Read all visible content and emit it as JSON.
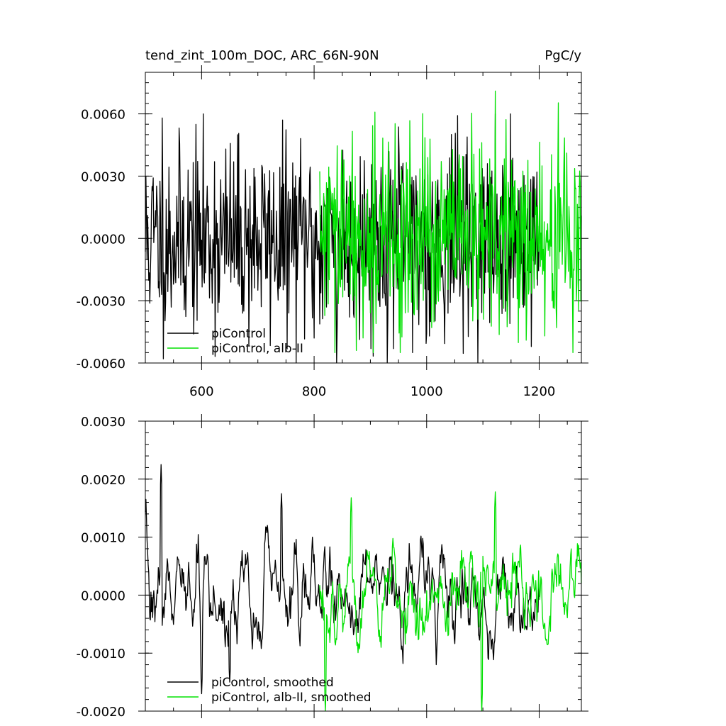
{
  "header": {
    "title": "tend_zint_100m_DOC, ARC_66N-90N",
    "units": "PgC/y"
  },
  "colors": {
    "piControl": "#000000",
    "alb": "#00e000"
  },
  "chart_data": [
    {
      "type": "line",
      "title": "tend_zint_100m_DOC, ARC_66N-90N",
      "units": "PgC/y",
      "xlim": [
        500,
        1275
      ],
      "ylim": [
        -0.006,
        0.008
      ],
      "xticks": [
        600,
        800,
        1000,
        1200
      ],
      "xtick_labels": [
        "600",
        "800",
        "1000",
        "1200"
      ],
      "yticks": [
        -0.006,
        -0.003,
        0.0,
        0.003,
        0.006
      ],
      "ytick_labels": [
        "-0.0060",
        "-0.0030",
        "0.0000",
        "0.0030",
        "0.0060"
      ],
      "legend_position": "bottom-left",
      "series": [
        {
          "name": "piControl",
          "color": "#000000",
          "x": [
            500,
            1200
          ],
          "y_mean": 0.0,
          "y_range": [
            -0.006,
            0.006
          ],
          "notable": [
            [
              530,
              0.0058
            ],
            [
              800,
              -0.0048
            ],
            [
              840,
              -0.006
            ],
            [
              975,
              -0.0055
            ]
          ]
        },
        {
          "name": "piControl, alb-II",
          "color": "#00e000",
          "x": [
            810,
            1275
          ],
          "y_mean": 0.0,
          "y_range": [
            -0.0055,
            0.0071
          ],
          "notable": [
            [
              1122,
              0.0071
            ],
            [
              875,
              -0.0054
            ],
            [
              1210,
              -0.0047
            ]
          ]
        }
      ]
    },
    {
      "type": "line",
      "xlim": [
        500,
        1275
      ],
      "ylim": [
        -0.002,
        0.003
      ],
      "xticks": [
        600,
        800,
        1000,
        1200
      ],
      "yticks": [
        -0.002,
        -0.001,
        0.0,
        0.001,
        0.002,
        0.003
      ],
      "ytick_labels": [
        "-0.0020",
        "-0.0010",
        "0.0000",
        "0.0010",
        "0.0020",
        "0.0030"
      ],
      "legend_position": "bottom-left",
      "series": [
        {
          "name": "piControl, smoothed",
          "color": "#000000",
          "x": [
            500,
            1200
          ],
          "y_mean": 0.0,
          "y_range": [
            -0.0018,
            0.00225
          ],
          "notable": [
            [
              528,
              0.00225
            ],
            [
              600,
              -0.0017
            ],
            [
              650,
              -0.0015
            ],
            [
              742,
              0.00175
            ]
          ]
        },
        {
          "name": "piControl, alb-II, smoothed",
          "color": "#00e000",
          "x": [
            810,
            1275
          ],
          "y_mean": 0.0,
          "y_range": [
            -0.002,
            0.00178
          ],
          "notable": [
            [
              820,
              -0.002
            ],
            [
              1098,
              -0.002
            ],
            [
              1122,
              0.00178
            ],
            [
              866,
              0.00168
            ]
          ]
        }
      ]
    }
  ]
}
